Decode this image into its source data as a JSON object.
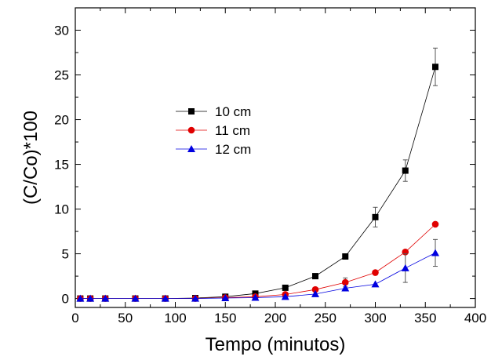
{
  "chart_data": {
    "type": "line",
    "title": "",
    "xlabel": "Tempo (minutos)",
    "ylabel": "(C/Co)*100",
    "xlim": [
      0,
      400
    ],
    "ylim": [
      -1,
      32.5
    ],
    "xticks": [
      0,
      50,
      100,
      150,
      200,
      250,
      300,
      350,
      400
    ],
    "yticks": [
      0,
      5,
      10,
      15,
      20,
      25,
      30
    ],
    "grid": false,
    "legend_position": "center-left",
    "series": [
      {
        "name": "10 cm",
        "color": "#000000",
        "marker": "square",
        "x": [
          5,
          15,
          30,
          60,
          90,
          120,
          150,
          180,
          210,
          240,
          270,
          300,
          330,
          360
        ],
        "y": [
          0,
          0,
          0,
          0,
          0,
          0.05,
          0.2,
          0.55,
          1.2,
          2.5,
          4.7,
          9.1,
          14.3,
          25.9
        ],
        "err": [
          0,
          0,
          0,
          0,
          0,
          0,
          0,
          0,
          0,
          0,
          0,
          1.1,
          1.2,
          2.1
        ]
      },
      {
        "name": "11 cm",
        "color": "#e00000",
        "marker": "circle",
        "x": [
          5,
          15,
          30,
          60,
          90,
          120,
          150,
          180,
          210,
          240,
          270,
          300,
          330,
          360
        ],
        "y": [
          0,
          0,
          0,
          0,
          0,
          0,
          0.1,
          0.2,
          0.45,
          1.0,
          1.8,
          2.9,
          5.2,
          8.3
        ],
        "err": [
          0,
          0,
          0,
          0,
          0,
          0,
          0,
          0,
          0,
          0,
          0.5,
          0,
          0,
          0
        ]
      },
      {
        "name": "12 cm",
        "color": "#0000e0",
        "marker": "triangle",
        "x": [
          5,
          15,
          30,
          60,
          90,
          120,
          150,
          180,
          210,
          240,
          270,
          300,
          330,
          360
        ],
        "y": [
          0,
          0,
          0,
          0,
          0,
          0,
          0.05,
          0.1,
          0.2,
          0.5,
          1.15,
          1.6,
          3.4,
          5.1
        ],
        "err": [
          0,
          0,
          0,
          0,
          0,
          0,
          0,
          0,
          0,
          0,
          0,
          0,
          1.6,
          1.5
        ]
      }
    ]
  }
}
